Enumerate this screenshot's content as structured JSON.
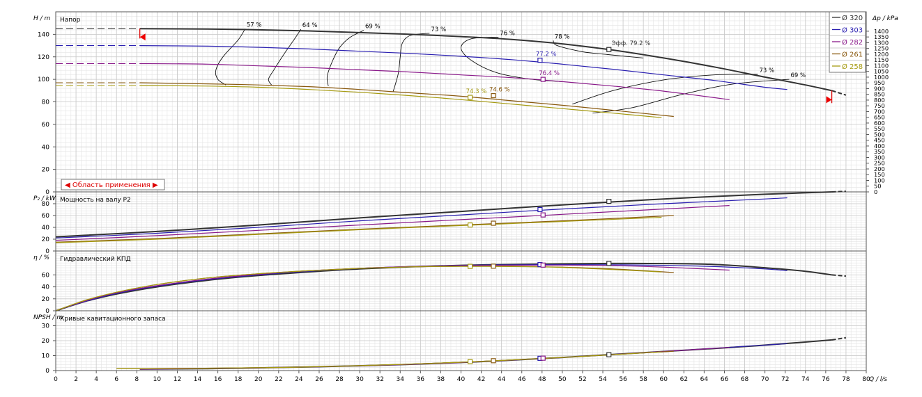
{
  "chart_data": {
    "type": "line",
    "x_axis": {
      "label": "Q / l/s",
      "min": 0,
      "max": 80,
      "tick_step": 2
    },
    "legend": {
      "position": "top-right",
      "entries": [
        {
          "label": "Ø 320",
          "color": "#333333"
        },
        {
          "label": "Ø 303",
          "color": "#2a1fb0"
        },
        {
          "label": "Ø 282",
          "color": "#8a1a8a"
        },
        {
          "label": "Ø 261",
          "color": "#8a5a10"
        },
        {
          "label": "Ø 258",
          "color": "#a59a10"
        }
      ]
    },
    "panels": [
      {
        "id": "head",
        "title": "Напор",
        "ylabel": "H / m",
        "ylim": [
          0,
          160
        ],
        "yticks": [
          0,
          20,
          40,
          60,
          80,
          100,
          120,
          140
        ],
        "right_axis": {
          "label": "Δp / kPa",
          "ylim": [
            0,
            1569
          ],
          "ticks": [
            0,
            50,
            100,
            150,
            200,
            250,
            300,
            350,
            400,
            450,
            500,
            550,
            600,
            650,
            700,
            750,
            800,
            850,
            900,
            950,
            1000,
            1050,
            1100,
            1150,
            1200,
            1250,
            1300,
            1350,
            1400
          ]
        },
        "range_label": "◀ Область применения ▶",
        "range_x": [
          8.3,
          76.6
        ],
        "series": [
          {
            "name": "Ø 320",
            "x": [
              8.3,
              15,
              20,
              25,
              30,
              35,
              40,
              45,
              50,
              55,
              60,
              65,
              70,
              74,
              76.6
            ],
            "y": [
              145,
              144.7,
              144,
              143,
              141.5,
              140,
              138,
              135.5,
              131.5,
              126,
              119,
              111,
              102,
              95,
              90
            ],
            "ext_x": [
              0,
              8.3
            ],
            "ext_y": [
              145,
              145
            ],
            "tail_x": [
              76.6,
              78
            ],
            "tail_y": [
              90,
              86
            ]
          },
          {
            "name": "Ø 303",
            "x": [
              8.3,
              15,
              20,
              25,
              30,
              35,
              40,
              45,
              50,
              55,
              60,
              65,
              70,
              72.2
            ],
            "y": [
              130,
              129.5,
              128.5,
              127,
              125,
              123,
              120.5,
              117.5,
              113.5,
              109,
              104,
              99,
              93,
              91
            ],
            "ext_x": [
              0,
              8.3
            ],
            "ext_y": [
              130,
              130
            ]
          },
          {
            "name": "Ø 282",
            "x": [
              8.3,
              15,
              20,
              25,
              30,
              35,
              40,
              45,
              50,
              55,
              60,
              66.5
            ],
            "y": [
              114,
              113.5,
              112,
              110.5,
              108.5,
              106.5,
              104,
              101.5,
              98,
              94,
              89.5,
              82
            ],
            "ext_x": [
              0,
              8.3
            ],
            "ext_y": [
              114,
              114
            ]
          },
          {
            "name": "Ø 261",
            "x": [
              8.3,
              15,
              20,
              25,
              30,
              35,
              40,
              45,
              50,
              55,
              61
            ],
            "y": [
              97,
              96,
              95,
              93.5,
              91,
              88,
              85,
              81,
              77,
              72.5,
              67
            ],
            "ext_x": [
              0,
              8.3
            ],
            "ext_y": [
              97,
              97
            ]
          },
          {
            "name": "Ø 258",
            "x": [
              8.3,
              15,
              20,
              25,
              30,
              35,
              40,
              45,
              50,
              55,
              59.8
            ],
            "y": [
              94.5,
              94,
              93,
              91,
              88.5,
              85.5,
              82,
              78,
              74,
              70,
              66
            ],
            "ext_x": [
              0,
              8.3
            ],
            "ext_y": [
              94.5,
              94.5
            ]
          }
        ],
        "iso_efficiency": [
          {
            "label": "57 %",
            "x": [
              18.7,
              18,
              16.5,
              15.8,
              16,
              16.8
            ],
            "y": [
              145,
              135,
              120,
              108,
              100,
              95
            ]
          },
          {
            "label": "64 %",
            "x": [
              24.2,
              23.5,
              22.5,
              21.5,
              21,
              21.3
            ],
            "y": [
              144.5,
              135,
              122,
              108,
              100,
              95
            ]
          },
          {
            "label": "69 %",
            "x": [
              30.4,
              29,
              28,
              27.3,
              26.8,
              26.9
            ],
            "y": [
              143.5,
              137,
              128,
              116,
              103,
              94
            ]
          },
          {
            "label": "73 %",
            "x": [
              36.9,
              35,
              34.2,
              34,
              33.8,
              33.3
            ],
            "y": [
              141,
              139,
              132,
              120,
              105,
              89
            ]
          },
          {
            "label": "76 %",
            "x": [
              43.7,
              41,
              40,
              41,
              43.5,
              47,
              50
            ],
            "y": [
              137.5,
              136,
              128,
              117,
              106,
              100,
              98
            ]
          },
          {
            "label": "78 %",
            "x": [
              49.1,
              49.5,
              52,
              54.5,
              58
            ],
            "y": [
              134.5,
              130,
              124.5,
              122,
              119
            ]
          },
          {
            "label": "73 %",
            "x": [
              69.3,
              65,
              60,
              55,
              51
            ],
            "y": [
              104.5,
              104,
              99.5,
              90,
              78
            ]
          },
          {
            "label": "69 %",
            "x": [
              72.4,
              67,
              62,
              57,
              53
            ],
            "y": [
              100,
              96,
              87,
              75,
              70
            ]
          }
        ],
        "points": [
          {
            "x": 54.6,
            "y": 126.5,
            "series": "Ø 320",
            "label": "Эфф. 79.2 %"
          },
          {
            "x": 47.8,
            "y": 117,
            "series": "Ø 303",
            "label": "77.2 %"
          },
          {
            "x": 48.1,
            "y": 100,
            "series": "Ø 282",
            "label": "76.4 %"
          },
          {
            "x": 43.2,
            "y": 85.5,
            "series": "Ø 261",
            "label": "74.6 %"
          },
          {
            "x": 40.9,
            "y": 84,
            "series": "Ø 258",
            "label": "74.3 %"
          }
        ]
      },
      {
        "id": "power",
        "title": "Мощность на валу P2",
        "ylabel": "P₂ / kW",
        "ylim": [
          0,
          100
        ],
        "yticks": [
          0,
          20,
          40,
          60,
          80
        ],
        "series": [
          {
            "name": "Ø 320",
            "x": [
              0,
              10,
              20,
              30,
              40,
              50,
              60,
              70,
              76.6
            ],
            "y": [
              24,
              33,
              44,
              56,
              67,
              78,
              88,
              96,
              100
            ],
            "tail_x": [
              76.6,
              78
            ],
            "tail_y": [
              100,
              101
            ]
          },
          {
            "name": "Ø 303",
            "x": [
              0,
              10,
              20,
              30,
              40,
              50,
              60,
              70,
              72.2
            ],
            "y": [
              22,
              30,
              40,
              51,
              61,
              71,
              80,
              88,
              90
            ]
          },
          {
            "name": "Ø 282",
            "x": [
              0,
              10,
              20,
              30,
              40,
              50,
              60,
              66.5
            ],
            "y": [
              18,
              26,
              35,
              44,
              53,
              62,
              71,
              77
            ]
          },
          {
            "name": "Ø 261",
            "x": [
              0,
              10,
              20,
              30,
              40,
              50,
              61
            ],
            "y": [
              15,
              21,
              29,
              37,
              44,
              51,
              60
            ]
          },
          {
            "name": "Ø 258",
            "x": [
              0,
              10,
              20,
              30,
              40,
              50,
              59.8
            ],
            "y": [
              14,
              20,
              28,
              36,
              43,
              50,
              57
            ]
          }
        ],
        "points": [
          {
            "x": 54.6,
            "y": 84,
            "series": "Ø 320"
          },
          {
            "x": 47.8,
            "y": 70,
            "series": "Ø 303"
          },
          {
            "x": 48.1,
            "y": 61,
            "series": "Ø 282"
          },
          {
            "x": 43.2,
            "y": 47,
            "series": "Ø 261"
          },
          {
            "x": 40.9,
            "y": 44,
            "series": "Ø 258"
          }
        ]
      },
      {
        "id": "efficiency",
        "title": "Гидравлический КПД",
        "ylabel": "η / %",
        "ylim": [
          0,
          100
        ],
        "yticks": [
          0,
          20,
          40,
          60
        ],
        "series": [
          {
            "name": "Ø 320",
            "x": [
              0,
              3,
              6,
              10,
              15,
              20,
              25,
              30,
              35,
              40,
              45,
              50,
              55,
              60,
              65,
              70,
              74,
              76.6
            ],
            "y": [
              0,
              16,
              28,
              40,
              51,
              59,
              65,
              70,
              73.5,
              76,
              77.5,
              78.5,
              79.2,
              79,
              77.5,
              72,
              66,
              60
            ],
            "tail_x": [
              76.6,
              78
            ],
            "tail_y": [
              60,
              58
            ]
          },
          {
            "name": "Ø 303",
            "x": [
              0,
              3,
              6,
              10,
              15,
              20,
              25,
              30,
              35,
              40,
              45,
              50,
              55,
              60,
              65,
              70,
              72.2
            ],
            "y": [
              0,
              16,
              29,
              41,
              52,
              60,
              66,
              71,
              74,
              76,
              77,
              77.2,
              77,
              76,
              74,
              70,
              67
            ]
          },
          {
            "name": "Ø 282",
            "x": [
              0,
              3,
              6,
              10,
              15,
              20,
              25,
              30,
              35,
              40,
              45,
              50,
              55,
              60,
              66.5
            ],
            "y": [
              0,
              17,
              30,
              42,
              53,
              61,
              67,
              71,
              74,
              75.5,
              76.2,
              76.4,
              75.5,
              73,
              68
            ]
          },
          {
            "name": "Ø 261",
            "x": [
              0,
              3,
              6,
              10,
              15,
              20,
              25,
              30,
              35,
              40,
              45,
              50,
              55,
              61
            ],
            "y": [
              0,
              18,
              31,
              44,
              55,
              62,
              67,
              71,
              73.5,
              74.5,
              74.4,
              73,
              70,
              64
            ]
          },
          {
            "name": "Ø 258",
            "x": [
              0,
              3,
              6,
              10,
              15,
              20,
              25,
              30,
              35,
              40,
              45,
              50,
              55,
              59.8
            ],
            "y": [
              0,
              18,
              31,
              44,
              55,
              62,
              67,
              71,
              73.5,
              74.3,
              74,
              72.5,
              69,
              65
            ]
          }
        ],
        "points": [
          {
            "x": 54.6,
            "y": 79.2,
            "series": "Ø 320"
          },
          {
            "x": 47.8,
            "y": 77.2,
            "series": "Ø 303"
          },
          {
            "x": 48.1,
            "y": 76.4,
            "series": "Ø 282"
          },
          {
            "x": 43.2,
            "y": 74.6,
            "series": "Ø 261"
          },
          {
            "x": 40.9,
            "y": 74.3,
            "series": "Ø 258"
          }
        ]
      },
      {
        "id": "npsh",
        "title": "Кривые кавитационного запаса",
        "ylabel": "NPSH / m",
        "ylim": [
          0,
          40
        ],
        "yticks": [
          0,
          10,
          20,
          30
        ],
        "series": [
          {
            "name": "Ø 320",
            "x": [
              8.3,
              15,
              20,
              25,
              30,
              35,
              40,
              45,
              50,
              55,
              60,
              65,
              70,
              76.6
            ],
            "y": [
              1,
              1.3,
              1.8,
              2.4,
              3.2,
              4.2,
              5.4,
              7,
              8.8,
              10.8,
              12.8,
              14.8,
              17,
              20.5
            ],
            "tail_x": [
              76.6,
              78
            ],
            "tail_y": [
              20.5,
              22
            ]
          },
          {
            "name": "Ø 303",
            "x": [
              8.3,
              20,
              30,
              40,
              50,
              60,
              72.2
            ],
            "y": [
              1,
              1.8,
              3.2,
              5.4,
              8.8,
              12.8,
              18
            ]
          },
          {
            "name": "Ø 282",
            "x": [
              8.3,
              20,
              30,
              40,
              50,
              60,
              66.5
            ],
            "y": [
              1,
              1.8,
              3.2,
              5.4,
              8.8,
              12.8,
              15.5
            ]
          },
          {
            "name": "Ø 261",
            "x": [
              6,
              20,
              30,
              40,
              50,
              61
            ],
            "y": [
              1.2,
              1.9,
              3.3,
              5.6,
              8.8,
              13
            ]
          },
          {
            "name": "Ø 258",
            "x": [
              6,
              20,
              30,
              40,
              50,
              59.8
            ],
            "y": [
              1.2,
              1.9,
              3.3,
              5.6,
              8.8,
              12.5
            ]
          }
        ],
        "points": [
          {
            "x": 54.6,
            "y": 10.6,
            "series": "Ø 320"
          },
          {
            "x": 47.8,
            "y": 8.2,
            "series": "Ø 303"
          },
          {
            "x": 48.1,
            "y": 8.3,
            "series": "Ø 282"
          },
          {
            "x": 43.2,
            "y": 6.6,
            "series": "Ø 261"
          },
          {
            "x": 40.9,
            "y": 6,
            "series": "Ø 258"
          }
        ]
      }
    ]
  }
}
